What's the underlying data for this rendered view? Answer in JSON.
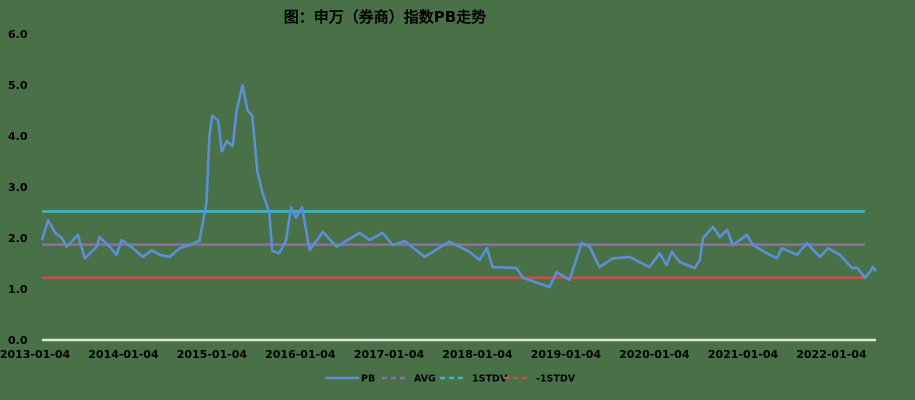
{
  "chart_data": {
    "type": "line",
    "title": "图：申万（券商）指数PB走势",
    "xlabel": "",
    "ylabel": "",
    "ylim": [
      0,
      6
    ],
    "yticks": [
      "0.0",
      "1.0",
      "2.0",
      "3.0",
      "4.0",
      "5.0",
      "6.0"
    ],
    "xticks": [
      "2013-01-04",
      "2014-01-04",
      "2015-01-04",
      "2016-01-04",
      "2017-01-04",
      "2018-01-04",
      "2019-01-04",
      "2020-01-04",
      "2021-01-04",
      "2022-01-04"
    ],
    "grid": false,
    "legend": "bottom",
    "colors": {
      "PB": "#5b8fd6",
      "AVG": "#8a6fa8",
      "1STDV": "#3fb6c8",
      "-1STDV": "#c8504a",
      "background": "#4a7048"
    },
    "series": [
      {
        "name": "PB",
        "style": "solid",
        "points": [
          [
            "2013-01-04",
            1.96
          ],
          [
            "2013-01-29",
            2.35
          ],
          [
            "2013-02-27",
            2.1
          ],
          [
            "2013-03-27",
            2.0
          ],
          [
            "2013-04-16",
            1.83
          ],
          [
            "2013-06-01",
            2.06
          ],
          [
            "2013-06-30",
            1.6
          ],
          [
            "2013-08-18",
            1.83
          ],
          [
            "2013-08-30",
            2.02
          ],
          [
            "2013-10-10",
            1.83
          ],
          [
            "2013-11-08",
            1.67
          ],
          [
            "2013-11-28",
            1.96
          ],
          [
            "2014-01-14",
            1.8
          ],
          [
            "2014-02-24",
            1.63
          ],
          [
            "2014-04-02",
            1.76
          ],
          [
            "2014-05-05",
            1.67
          ],
          [
            "2014-06-15",
            1.63
          ],
          [
            "2014-07-26",
            1.8
          ],
          [
            "2014-09-05",
            1.86
          ],
          [
            "2014-10-16",
            1.95
          ],
          [
            "2014-11-14",
            2.7
          ],
          [
            "2014-11-26",
            4.0
          ],
          [
            "2014-12-08",
            4.4
          ],
          [
            "2015-01-01",
            4.3
          ],
          [
            "2015-01-16",
            3.7
          ],
          [
            "2015-02-06",
            3.9
          ],
          [
            "2015-03-02",
            3.8
          ],
          [
            "2015-03-18",
            4.5
          ],
          [
            "2015-04-12",
            5.0
          ],
          [
            "2015-05-02",
            4.5
          ],
          [
            "2015-05-22",
            4.4
          ],
          [
            "2015-06-12",
            3.3
          ],
          [
            "2015-07-02",
            2.9
          ],
          [
            "2015-07-31",
            2.5
          ],
          [
            "2015-08-12",
            1.75
          ],
          [
            "2015-09-10",
            1.7
          ],
          [
            "2015-10-08",
            1.95
          ],
          [
            "2015-10-29",
            2.6
          ],
          [
            "2015-11-18",
            2.4
          ],
          [
            "2015-12-13",
            2.6
          ],
          [
            "2016-01-14",
            1.76
          ],
          [
            "2016-03-08",
            2.12
          ],
          [
            "2016-05-04",
            1.83
          ],
          [
            "2016-08-07",
            2.1
          ],
          [
            "2016-09-17",
            1.96
          ],
          [
            "2016-11-10",
            2.1
          ],
          [
            "2016-12-21",
            1.86
          ],
          [
            "2017-02-09",
            1.94
          ],
          [
            "2017-05-02",
            1.63
          ],
          [
            "2017-08-13",
            1.93
          ],
          [
            "2017-11-03",
            1.73
          ],
          [
            "2017-12-15",
            1.57
          ],
          [
            "2018-01-14",
            1.8
          ],
          [
            "2018-02-07",
            1.43
          ],
          [
            "2018-05-17",
            1.41
          ],
          [
            "2018-06-11",
            1.22
          ],
          [
            "2018-09-30",
            1.04
          ],
          [
            "2018-10-29",
            1.33
          ],
          [
            "2018-12-21",
            1.18
          ],
          [
            "2019-02-09",
            1.9
          ],
          [
            "2019-03-14",
            1.83
          ],
          [
            "2019-04-24",
            1.43
          ],
          [
            "2019-06-17",
            1.6
          ],
          [
            "2019-08-26",
            1.63
          ],
          [
            "2019-11-16",
            1.43
          ],
          [
            "2019-12-28",
            1.7
          ],
          [
            "2020-01-26",
            1.47
          ],
          [
            "2020-02-16",
            1.73
          ],
          [
            "2020-03-20",
            1.53
          ],
          [
            "2020-05-21",
            1.41
          ],
          [
            "2020-06-11",
            1.57
          ],
          [
            "2020-06-24",
            2.0
          ],
          [
            "2020-08-04",
            2.22
          ],
          [
            "2020-09-02",
            2.02
          ],
          [
            "2020-10-01",
            2.16
          ],
          [
            "2020-10-25",
            1.86
          ],
          [
            "2020-12-22",
            2.06
          ],
          [
            "2021-01-16",
            1.86
          ],
          [
            "2021-03-15",
            1.7
          ],
          [
            "2021-04-25",
            1.6
          ],
          [
            "2021-05-16",
            1.8
          ],
          [
            "2021-07-17",
            1.67
          ],
          [
            "2021-08-27",
            1.9
          ],
          [
            "2021-10-20",
            1.63
          ],
          [
            "2021-11-22",
            1.8
          ],
          [
            "2022-01-10",
            1.67
          ],
          [
            "2022-03-01",
            1.41
          ],
          [
            "2022-03-25",
            1.41
          ],
          [
            "2022-04-23",
            1.22
          ],
          [
            "2022-05-13",
            1.33
          ],
          [
            "2022-05-26",
            1.43
          ],
          [
            "2022-06-07",
            1.35
          ]
        ]
      },
      {
        "name": "AVG",
        "style": "dashed",
        "value": 1.87
      },
      {
        "name": "1STDV",
        "style": "dashed",
        "value": 2.52
      },
      {
        "name": "-1STDV",
        "style": "dashed",
        "value": 1.22
      }
    ]
  }
}
